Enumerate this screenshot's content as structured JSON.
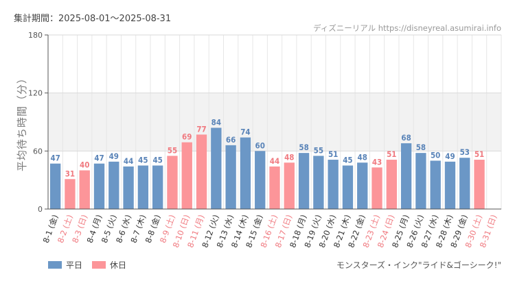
{
  "header": {
    "period": "集計期間：2025-08-01〜2025-08-31",
    "source": "ディズニーリアル https://disneyreal.asumirai.info"
  },
  "footer": {
    "attraction": "モンスターズ・インク\"ライド&ゴーシーク!\""
  },
  "legend": [
    {
      "label": "平日",
      "color": "#6b97c6"
    },
    {
      "label": "休日",
      "color": "#fc9599"
    }
  ],
  "colors": {
    "weekday_bar": "#6b97c6",
    "holiday_bar": "#fc9599",
    "weekday_label": "#5a84b8",
    "holiday_label": "#f07a80",
    "band": "#f2f2f2",
    "grid": "#e6e6e6"
  },
  "chart_data": {
    "type": "bar",
    "ylabel": "平均待ち時間（分）",
    "ylim": [
      0,
      180
    ],
    "yticks": [
      0,
      60,
      120,
      180
    ],
    "grid": true,
    "shaded_band": [
      60,
      120
    ],
    "legend_position": "bottom-left",
    "categories": [
      "8-1 (金)",
      "8-2 (土)",
      "8-3 (日)",
      "8-4 (月)",
      "8-5 (火)",
      "8-6 (水)",
      "8-7 (木)",
      "8-8 (金)",
      "8-9 (土)",
      "8-10 (日)",
      "8-11 (月)",
      "8-12 (火)",
      "8-13 (水)",
      "8-14 (木)",
      "8-15 (金)",
      "8-16 (土)",
      "8-17 (日)",
      "8-18 (月)",
      "8-19 (火)",
      "8-20 (水)",
      "8-21 (木)",
      "8-22 (金)",
      "8-23 (土)",
      "8-24 (日)",
      "8-25 (月)",
      "8-26 (火)",
      "8-27 (水)",
      "8-28 (木)",
      "8-29 (金)",
      "8-30 (土)",
      "8-31 (日)"
    ],
    "values": [
      47,
      31,
      40,
      47,
      49,
      44,
      45,
      45,
      55,
      69,
      77,
      84,
      66,
      74,
      60,
      44,
      48,
      58,
      55,
      51,
      45,
      48,
      43,
      51,
      68,
      58,
      50,
      49,
      53,
      51,
      null
    ],
    "day_type": [
      "平日",
      "休日",
      "休日",
      "平日",
      "平日",
      "平日",
      "平日",
      "平日",
      "休日",
      "休日",
      "休日",
      "平日",
      "平日",
      "平日",
      "平日",
      "休日",
      "休日",
      "平日",
      "平日",
      "平日",
      "平日",
      "平日",
      "休日",
      "休日",
      "平日",
      "平日",
      "平日",
      "平日",
      "平日",
      "休日",
      "休日"
    ]
  }
}
